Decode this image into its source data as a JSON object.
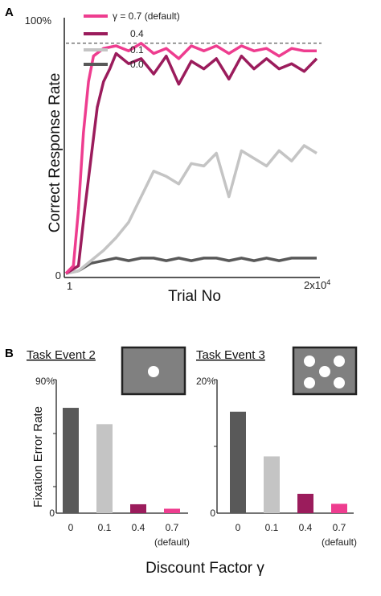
{
  "panel_a": {
    "label": "A",
    "ylabel": "Correct Response Rate",
    "xlabel": "Trial No",
    "y_tick_top": "100%",
    "y_tick_bottom": "0",
    "x_tick_left": "1",
    "x_tick_right_base": "2x10",
    "x_tick_right_exp": "4",
    "legend": [
      "γ = 0.7 (default)",
      "0.4",
      "0.1",
      "0.0"
    ]
  },
  "panel_b": {
    "label": "B",
    "xlabel": "Discount Factor γ",
    "ylabel": "Fixation Error Rate",
    "sub1_title": "Task Event 2",
    "sub2_title": "Task Event 3",
    "sub1_ytop": "90%",
    "sub1_ybottom": "0",
    "sub2_ytop": "20%",
    "sub2_ybottom": "0",
    "cat_labels": [
      "0",
      "0.1",
      "0.4",
      "0.7"
    ],
    "cat_sublabels": [
      "",
      "",
      "",
      "(default)"
    ]
  },
  "colors": {
    "g07": "#ee3d8f",
    "g04": "#9b1c5c",
    "g01": "#c4c4c4",
    "g00": "#595959"
  },
  "chart_data": [
    {
      "type": "line",
      "title": "",
      "xlabel": "Trial No",
      "ylabel": "Correct Response Rate",
      "xlim": [
        1,
        20000
      ],
      "ylim": [
        0,
        100
      ],
      "dashed_reference_y": 90,
      "series": [
        {
          "name": "γ = 0.7 (default)",
          "color": "#ee3d8f",
          "x": [
            1,
            600,
            1000,
            1400,
            1800,
            2200,
            3000,
            4000,
            5000,
            6000,
            7000,
            8000,
            9000,
            10000,
            11000,
            12000,
            13000,
            14000,
            15000,
            16000,
            17000,
            18000,
            19000,
            20000
          ],
          "y": [
            0,
            3,
            25,
            55,
            75,
            85,
            88,
            89,
            87,
            90,
            86,
            88,
            84,
            89,
            87,
            89,
            86,
            89,
            87,
            88,
            85,
            88,
            87,
            87
          ]
        },
        {
          "name": "0.4",
          "color": "#9b1c5c",
          "x": [
            1,
            1000,
            1500,
            2000,
            2500,
            3000,
            3500,
            4000,
            5000,
            6000,
            7000,
            8000,
            9000,
            10000,
            11000,
            12000,
            13000,
            14000,
            15000,
            16000,
            17000,
            18000,
            19000,
            20000
          ],
          "y": [
            0,
            3,
            25,
            45,
            65,
            75,
            80,
            86,
            82,
            84,
            78,
            85,
            74,
            83,
            80,
            84,
            76,
            85,
            80,
            84,
            80,
            82,
            79,
            84
          ]
        },
        {
          "name": "0.1",
          "color": "#c4c4c4",
          "x": [
            1,
            1000,
            2000,
            3000,
            4000,
            5000,
            6000,
            7000,
            8000,
            9000,
            10000,
            11000,
            12000,
            13000,
            14000,
            15000,
            16000,
            17000,
            18000,
            19000,
            20000
          ],
          "y": [
            0,
            1,
            5,
            9,
            14,
            20,
            30,
            40,
            38,
            35,
            43,
            42,
            47,
            30,
            48,
            45,
            42,
            48,
            44,
            50,
            47
          ]
        },
        {
          "name": "0.0",
          "color": "#595959",
          "x": [
            1,
            1000,
            2000,
            3000,
            4000,
            5000,
            6000,
            7000,
            8000,
            9000,
            10000,
            11000,
            12000,
            13000,
            14000,
            15000,
            16000,
            17000,
            18000,
            19000,
            20000
          ],
          "y": [
            0,
            1,
            4,
            5,
            6,
            5,
            6,
            6,
            5,
            6,
            5,
            6,
            6,
            5,
            6,
            5,
            6,
            5,
            6,
            6,
            6
          ]
        }
      ]
    },
    {
      "type": "bar",
      "title": "Task Event 2",
      "xlabel": "Discount Factor γ",
      "ylabel": "Fixation Error Rate",
      "categories": [
        "0",
        "0.1",
        "0.4",
        "0.7 (default)"
      ],
      "values": [
        71,
        60,
        6,
        3
      ],
      "colors": [
        "#595959",
        "#c4c4c4",
        "#9b1c5c",
        "#ee3d8f"
      ],
      "ylim": [
        0,
        90
      ]
    },
    {
      "type": "bar",
      "title": "Task Event 3",
      "xlabel": "Discount Factor γ",
      "ylabel": "",
      "categories": [
        "0",
        "0.1",
        "0.4",
        "0.7 (default)"
      ],
      "values": [
        15.2,
        8.5,
        2.9,
        1.4
      ],
      "colors": [
        "#595959",
        "#c4c4c4",
        "#9b1c5c",
        "#ee3d8f"
      ],
      "ylim": [
        0,
        20
      ]
    }
  ]
}
